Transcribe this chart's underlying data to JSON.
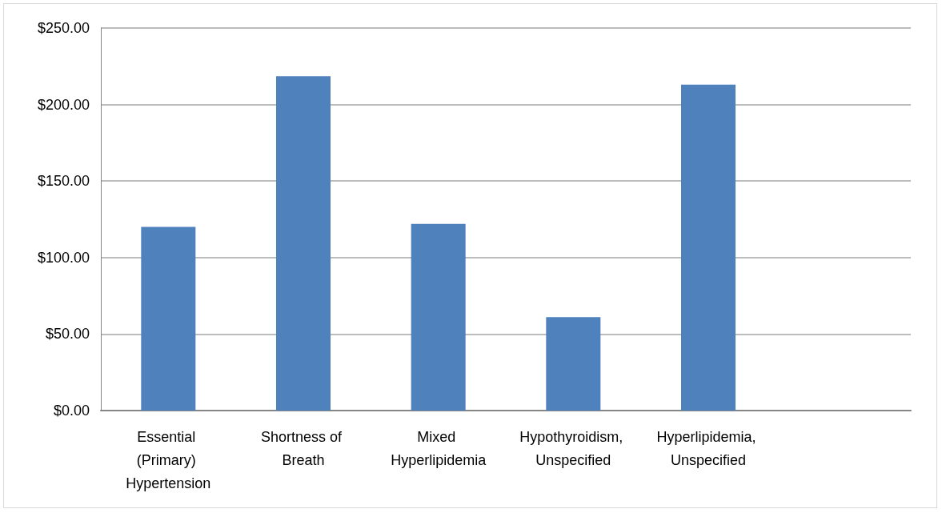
{
  "chart_data": {
    "type": "bar",
    "categories": [
      "Essential (Primary) Hypertension",
      "Shortness of Breath",
      "Mixed Hyperlipidemia",
      "Hypothyroidism, Unspecified",
      "Hyperlipidemia, Unspecified",
      null
    ],
    "values": [
      120,
      218.5,
      122,
      61,
      213,
      null
    ],
    "color": "#4f81bd",
    "ylim": [
      0,
      250
    ],
    "yticks": [
      {
        "value": 0,
        "label": "$0.00"
      },
      {
        "value": 50,
        "label": "$50.00"
      },
      {
        "value": 100,
        "label": "$100.00"
      },
      {
        "value": 150,
        "label": "$150.00"
      },
      {
        "value": 200,
        "label": "$200.00"
      },
      {
        "value": 250,
        "label": "$250.00"
      }
    ],
    "grid": "y"
  }
}
